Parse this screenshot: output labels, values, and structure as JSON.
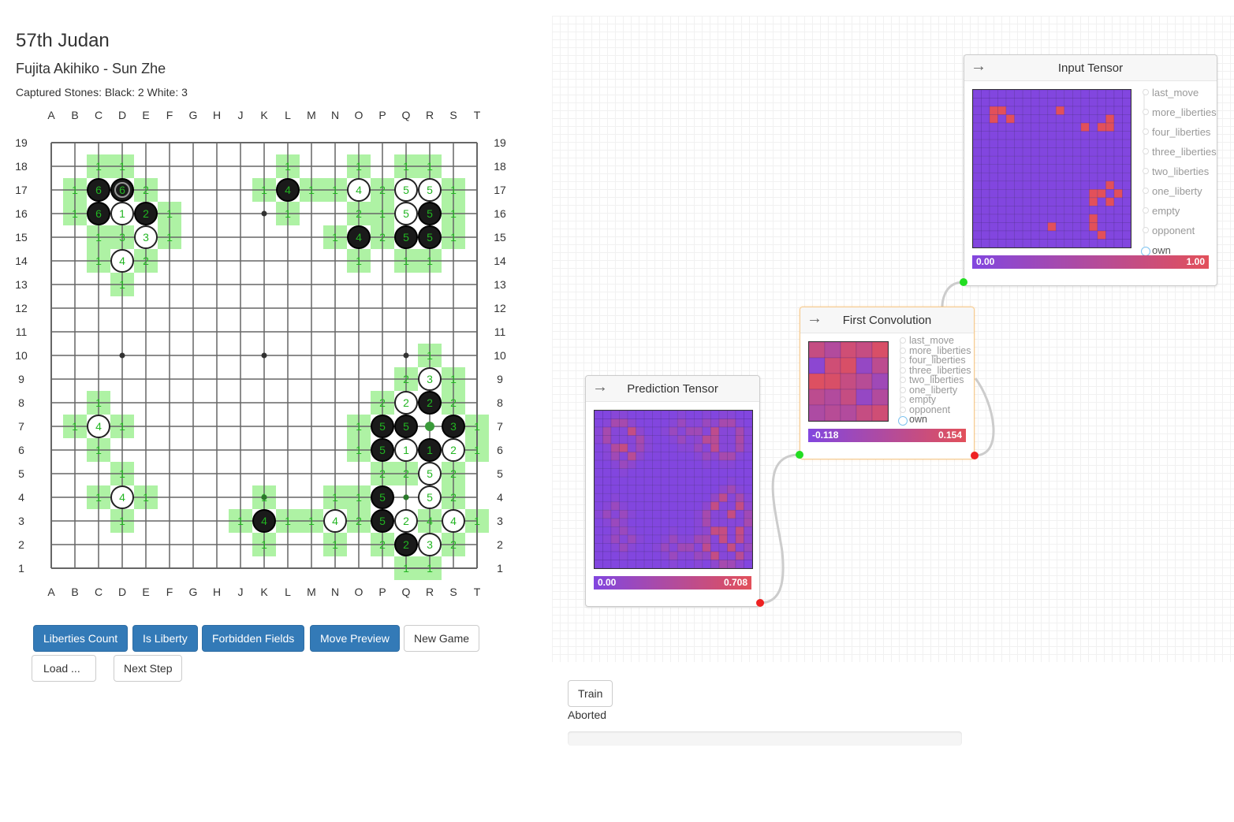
{
  "game": {
    "title": "57th Judan",
    "players": "Fujita Akihiko - Sun Zhe",
    "captured": "Captured Stones: Black: 2 White: 3"
  },
  "board": {
    "columns": [
      "A",
      "B",
      "C",
      "D",
      "E",
      "F",
      "G",
      "H",
      "J",
      "K",
      "L",
      "M",
      "N",
      "O",
      "P",
      "Q",
      "R",
      "S",
      "T"
    ],
    "stones": [
      [
        "C17",
        "b",
        "6"
      ],
      [
        "D17",
        "b",
        "6"
      ],
      [
        "L17",
        "b",
        "4"
      ],
      [
        "O17",
        "w",
        "4"
      ],
      [
        "Q17",
        "w",
        "5"
      ],
      [
        "R17",
        "w",
        "5"
      ],
      [
        "C16",
        "b",
        "6"
      ],
      [
        "D16",
        "w",
        "1"
      ],
      [
        "E16",
        "b",
        "2"
      ],
      [
        "Q16",
        "w",
        "5"
      ],
      [
        "R16",
        "b",
        "5"
      ],
      [
        "E15",
        "w",
        "3"
      ],
      [
        "O15",
        "b",
        "4"
      ],
      [
        "Q15",
        "b",
        "5"
      ],
      [
        "R15",
        "b",
        "5"
      ],
      [
        "D14",
        "w",
        "4"
      ],
      [
        "R9",
        "w",
        "3"
      ],
      [
        "Q8",
        "w",
        "2"
      ],
      [
        "R8",
        "b",
        "2"
      ],
      [
        "C7",
        "w",
        "4"
      ],
      [
        "P7",
        "b",
        "5"
      ],
      [
        "Q7",
        "b",
        "5"
      ],
      [
        "S7",
        "b",
        "3"
      ],
      [
        "P6",
        "b",
        "5"
      ],
      [
        "Q6",
        "w",
        "1"
      ],
      [
        "R6",
        "b",
        "1"
      ],
      [
        "S6",
        "w",
        "2"
      ],
      [
        "R5",
        "w",
        "5"
      ],
      [
        "D4",
        "w",
        "4"
      ],
      [
        "P4",
        "b",
        "5"
      ],
      [
        "R4",
        "w",
        "5"
      ],
      [
        "K3",
        "b",
        "4"
      ],
      [
        "N3",
        "w",
        "4"
      ],
      [
        "P3",
        "b",
        "5"
      ],
      [
        "Q3",
        "w",
        "2"
      ],
      [
        "S3",
        "w",
        "4"
      ],
      [
        "Q2",
        "b",
        "2"
      ],
      [
        "R2",
        "w",
        "3"
      ]
    ],
    "liberties": [
      [
        "C18",
        "1"
      ],
      [
        "D18",
        "1"
      ],
      [
        "L18",
        "1"
      ],
      [
        "O18",
        "1"
      ],
      [
        "Q18",
        "1"
      ],
      [
        "R18",
        "1"
      ],
      [
        "B17",
        "1"
      ],
      [
        "E17",
        "2"
      ],
      [
        "K17",
        "1"
      ],
      [
        "M17",
        "1"
      ],
      [
        "N17",
        "1"
      ],
      [
        "P17",
        "2"
      ],
      [
        "S17",
        "1"
      ],
      [
        "B16",
        "1"
      ],
      [
        "F16",
        "1"
      ],
      [
        "L16",
        "1"
      ],
      [
        "O16",
        "2"
      ],
      [
        "P16",
        "1"
      ],
      [
        "S16",
        "1"
      ],
      [
        "C15",
        "1"
      ],
      [
        "D15",
        "3"
      ],
      [
        "F15",
        "1"
      ],
      [
        "N15",
        "1"
      ],
      [
        "P15",
        "2"
      ],
      [
        "S15",
        "1"
      ],
      [
        "C14",
        "1"
      ],
      [
        "E14",
        "2"
      ],
      [
        "O14",
        "1"
      ],
      [
        "Q14",
        "1"
      ],
      [
        "R14",
        "1"
      ],
      [
        "D13",
        "1"
      ],
      [
        "R10",
        "1"
      ],
      [
        "Q9",
        "2"
      ],
      [
        "S9",
        "1"
      ],
      [
        "C8",
        "1"
      ],
      [
        "P8",
        "2"
      ],
      [
        "S8",
        "2"
      ],
      [
        "B7",
        "1"
      ],
      [
        "D7",
        "1"
      ],
      [
        "O7",
        "1"
      ],
      [
        "T7",
        "1"
      ],
      [
        "C6",
        "1"
      ],
      [
        "O6",
        "1"
      ],
      [
        "T6",
        "1"
      ],
      [
        "D5",
        "1"
      ],
      [
        "P5",
        "2"
      ],
      [
        "Q5",
        "2"
      ],
      [
        "S5",
        "2"
      ],
      [
        "C4",
        "1"
      ],
      [
        "E4",
        "1"
      ],
      [
        "K4",
        "1"
      ],
      [
        "N4",
        "1"
      ],
      [
        "O4",
        "1"
      ],
      [
        "S4",
        "2"
      ],
      [
        "D3",
        "1"
      ],
      [
        "J3",
        "1"
      ],
      [
        "L3",
        "1"
      ],
      [
        "M3",
        "1"
      ],
      [
        "O3",
        "2"
      ],
      [
        "R3",
        "4"
      ],
      [
        "T3",
        "1"
      ],
      [
        "K2",
        "1"
      ],
      [
        "N2",
        "1"
      ],
      [
        "P2",
        "2"
      ],
      [
        "S2",
        "2"
      ],
      [
        "Q1",
        "1"
      ],
      [
        "R1",
        "1"
      ]
    ],
    "green_marks": [
      "R7"
    ],
    "dark_marks": [
      "K4",
      "Q4"
    ],
    "last_move": "D17"
  },
  "buttons": {
    "liberties_count": "Liberties Count",
    "is_liberty": "Is Liberty",
    "forbidden_fields": "Forbidden Fields",
    "move_preview": "Move Preview",
    "new_game": "New Game",
    "load": "Load ...",
    "next_step": "Next Step",
    "train": "Train"
  },
  "training": {
    "status": "Aborted",
    "progress": 0
  },
  "nodes": {
    "input": {
      "title": "Input Tensor",
      "ports": [
        "last_move",
        "more_liberties",
        "four_liberties",
        "three_liberties",
        "two_liberties",
        "one_liberty",
        "empty",
        "opponent",
        "own"
      ],
      "active_port": "own",
      "range_min": "0.00",
      "range_max": "1.00"
    },
    "conv": {
      "title": "First Convolution",
      "ports": [
        "last_move",
        "more_liberties",
        "four_liberties",
        "three_liberties",
        "two_liberties",
        "one_liberty",
        "empty",
        "opponent",
        "own"
      ],
      "active_port": "own",
      "range_min": "-0.118",
      "range_max": "0.154"
    },
    "prediction": {
      "title": "Prediction Tensor",
      "range_min": "0.00",
      "range_max": "0.708"
    }
  },
  "colors": {
    "primary": "#337ab7",
    "liberty_bg": "#aef2a4",
    "liberty_text": "#22b522",
    "heat_low": "#8246df",
    "heat_high": "#e2505a"
  }
}
